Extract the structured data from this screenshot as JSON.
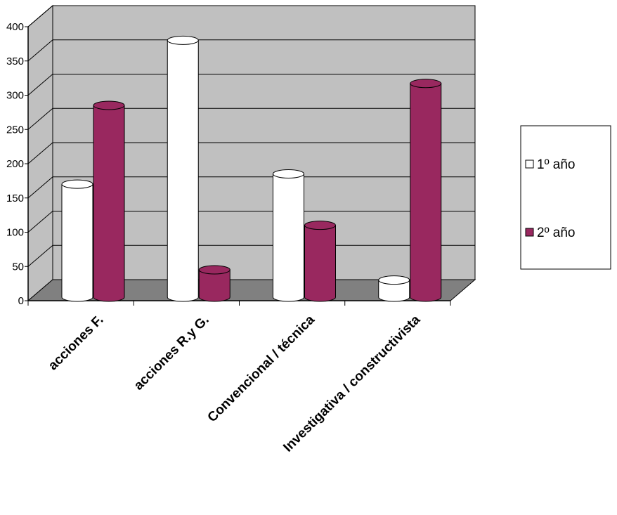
{
  "chart_data": {
    "type": "bar",
    "style": "3d-cylinder",
    "categories": [
      "acciones F.",
      "acciones R.y G.",
      "Convencional / técnica",
      "Investigativa / constructivista"
    ],
    "series": [
      {
        "name": "1º año",
        "values": [
          165,
          375,
          180,
          25
        ],
        "color": "#ffffff"
      },
      {
        "name": "2º año",
        "values": [
          280,
          40,
          105,
          312
        ],
        "color": "#99285f"
      }
    ],
    "yticks": [
      "0",
      "50",
      "100",
      "150",
      "200",
      "250",
      "300",
      "350",
      "400"
    ],
    "ylim": [
      0,
      400
    ],
    "grid": true,
    "legend_position": "right",
    "wall_color": "#c0c0c0",
    "floor_color": "#808080"
  }
}
